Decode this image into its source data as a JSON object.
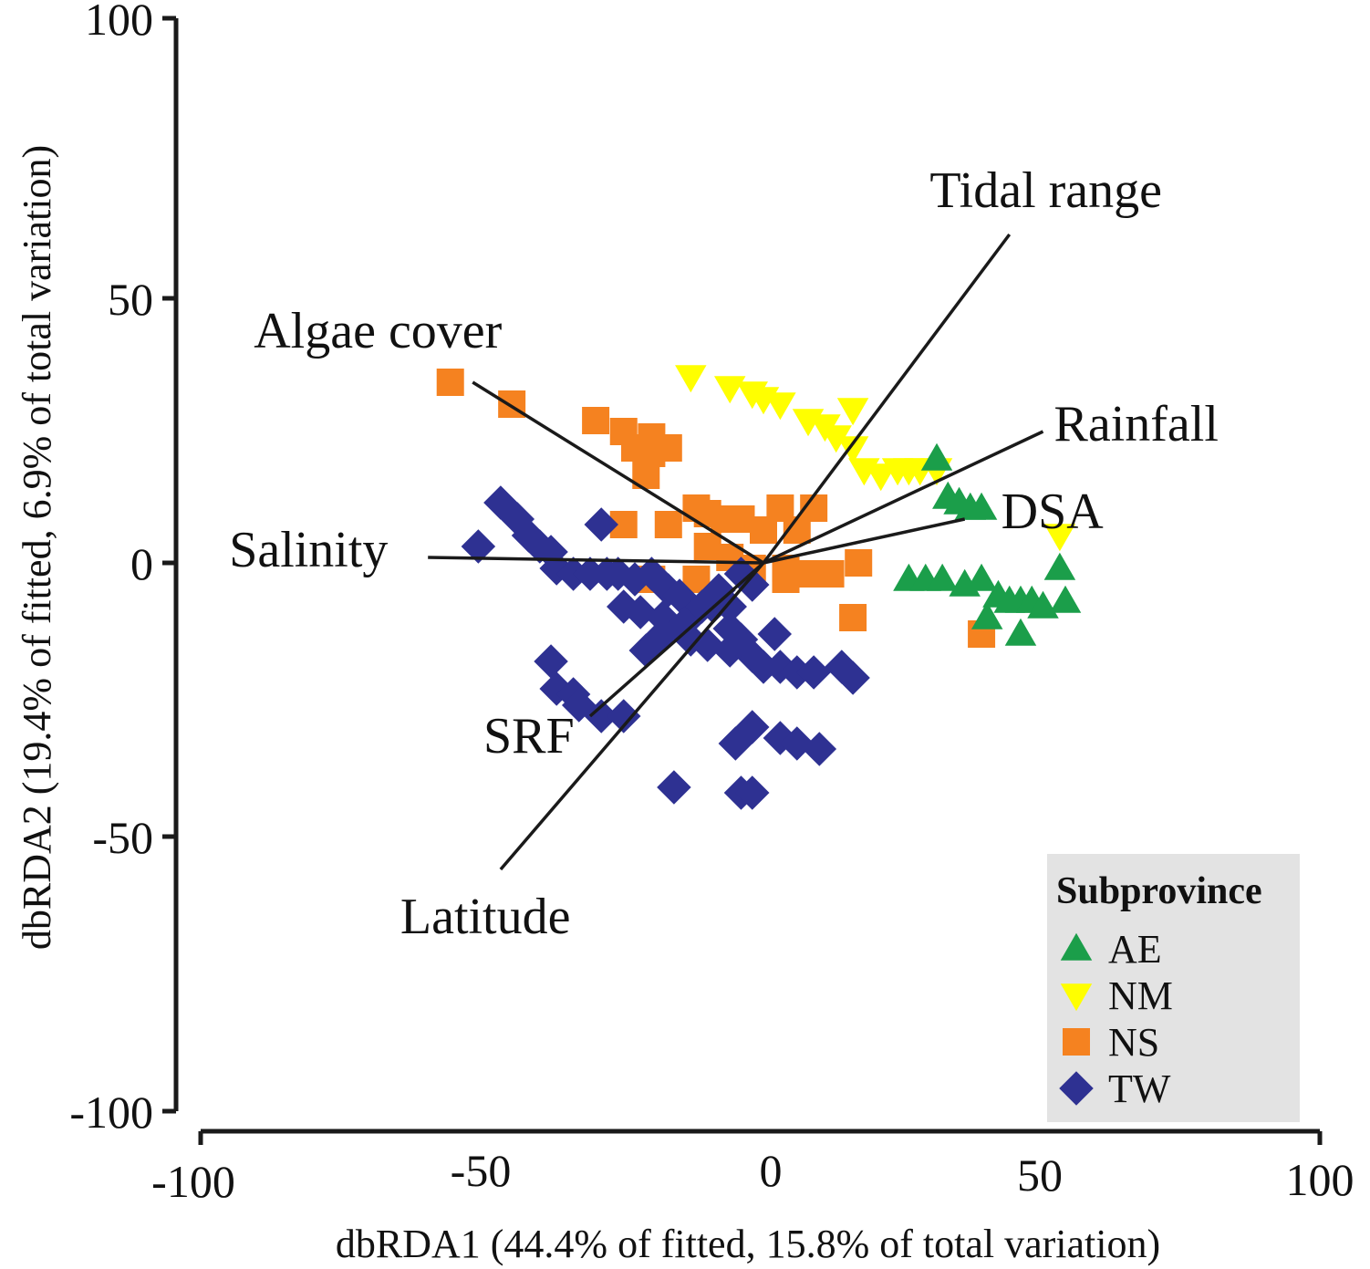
{
  "chart_data": {
    "type": "scatter",
    "title": "",
    "xlabel": "dbRDA1 (44.4% of fitted, 15.8% of total variation)",
    "ylabel": "dbRDA2 (19.4% of fitted, 6.9% of total variation)",
    "xlim": [
      -100,
      100
    ],
    "ylim": [
      -100,
      100
    ],
    "x_ticks": [
      "-100",
      "-50",
      "0",
      "50",
      "100"
    ],
    "y_ticks": [
      "100",
      "50",
      "0",
      "-50",
      "-100"
    ],
    "grid": false,
    "legend": {
      "title": "Subprovince",
      "position": "bottom-right",
      "entries": [
        {
          "name": "AE",
          "color": "#1b9e4a",
          "marker": "triangle-up"
        },
        {
          "name": "NM",
          "color": "#ffff00",
          "marker": "triangle-down"
        },
        {
          "name": "NS",
          "color": "#f58220",
          "marker": "square"
        },
        {
          "name": "TW",
          "color": "#2e3192",
          "marker": "diamond"
        }
      ]
    },
    "vectors": [
      {
        "name": "Tidal range",
        "x": 44,
        "y": 60
      },
      {
        "name": "Rainfall",
        "x": 50,
        "y": 24
      },
      {
        "name": "DSA",
        "x": 36,
        "y": 8
      },
      {
        "name": "Algae cover",
        "x": -52,
        "y": 33
      },
      {
        "name": "Salinity",
        "x": -60,
        "y": 1
      },
      {
        "name": "SRF",
        "x": -31,
        "y": -28
      },
      {
        "name": "Latitude",
        "x": -47,
        "y": -56
      }
    ],
    "series": [
      {
        "name": "AE",
        "points": [
          [
            31,
            19
          ],
          [
            33,
            12
          ],
          [
            35,
            11
          ],
          [
            37,
            10
          ],
          [
            39,
            10
          ],
          [
            26,
            -3
          ],
          [
            29,
            -3
          ],
          [
            32,
            -3
          ],
          [
            36,
            -4
          ],
          [
            39,
            -3
          ],
          [
            42,
            -6
          ],
          [
            44,
            -7
          ],
          [
            46,
            -7
          ],
          [
            48,
            -7
          ],
          [
            50,
            -8
          ],
          [
            53,
            -1
          ],
          [
            54,
            -7
          ],
          [
            40,
            -10
          ],
          [
            46,
            -13
          ]
        ]
      },
      {
        "name": "NM",
        "points": [
          [
            -13,
            34
          ],
          [
            -6,
            32
          ],
          [
            -2,
            31
          ],
          [
            0,
            30
          ],
          [
            3,
            29
          ],
          [
            8,
            26
          ],
          [
            11,
            25
          ],
          [
            13,
            23
          ],
          [
            16,
            21
          ],
          [
            16,
            28
          ],
          [
            18,
            17
          ],
          [
            21,
            16
          ],
          [
            24,
            17
          ],
          [
            26,
            17
          ],
          [
            28,
            17
          ],
          [
            31,
            17
          ],
          [
            53,
            5
          ]
        ]
      },
      {
        "name": "NS",
        "points": [
          [
            -56,
            33
          ],
          [
            -45,
            29
          ],
          [
            -30,
            26
          ],
          [
            -25,
            24
          ],
          [
            -20,
            23
          ],
          [
            -23,
            21
          ],
          [
            -20,
            20
          ],
          [
            -21,
            16
          ],
          [
            -17,
            21
          ],
          [
            -12,
            10
          ],
          [
            -10,
            9
          ],
          [
            -7,
            8
          ],
          [
            -4,
            8
          ],
          [
            0,
            6
          ],
          [
            3,
            10
          ],
          [
            6,
            6
          ],
          [
            9,
            10
          ],
          [
            -25,
            7
          ],
          [
            -17,
            7
          ],
          [
            -10,
            3
          ],
          [
            -6,
            1
          ],
          [
            -2,
            -1
          ],
          [
            4,
            -1
          ],
          [
            8,
            -2
          ],
          [
            12,
            -2
          ],
          [
            17,
            0
          ],
          [
            16,
            -10
          ],
          [
            -20,
            -3
          ],
          [
            -12,
            -3
          ],
          [
            4,
            -3
          ],
          [
            39,
            -13
          ]
        ]
      },
      {
        "name": "TW",
        "points": [
          [
            -47,
            11
          ],
          [
            -44,
            8
          ],
          [
            -42,
            5
          ],
          [
            -40,
            3
          ],
          [
            -38,
            2
          ],
          [
            -51,
            3
          ],
          [
            -37,
            -1
          ],
          [
            -34,
            -2
          ],
          [
            -31,
            -2
          ],
          [
            -28,
            -2
          ],
          [
            -26,
            -2
          ],
          [
            -29,
            7
          ],
          [
            -23,
            -3
          ],
          [
            -20,
            -2
          ],
          [
            -17,
            -5
          ],
          [
            -15,
            -6
          ],
          [
            -25,
            -8
          ],
          [
            -22,
            -9
          ],
          [
            -18,
            -10
          ],
          [
            -14,
            -11
          ],
          [
            -11,
            -8
          ],
          [
            -8,
            -5
          ],
          [
            -6,
            -8
          ],
          [
            -4,
            -2
          ],
          [
            -2,
            -4
          ],
          [
            -21,
            -16
          ],
          [
            -18,
            -13
          ],
          [
            -13,
            -14
          ],
          [
            -10,
            -15
          ],
          [
            -6,
            -16
          ],
          [
            -2,
            -17
          ],
          [
            -9,
            -8
          ],
          [
            -6,
            -12
          ],
          [
            -4,
            -14
          ],
          [
            2,
            -13
          ],
          [
            0,
            -19
          ],
          [
            3,
            -19
          ],
          [
            6,
            -20
          ],
          [
            9,
            -20
          ],
          [
            14,
            -19
          ],
          [
            16,
            -21
          ],
          [
            -38,
            -18
          ],
          [
            -37,
            -23
          ],
          [
            -34,
            -24
          ],
          [
            -33,
            -26
          ],
          [
            -29,
            -28
          ],
          [
            -25,
            -28
          ],
          [
            -2,
            -30
          ],
          [
            3,
            -32
          ],
          [
            6,
            -33
          ],
          [
            10,
            -34
          ],
          [
            -5,
            -33
          ],
          [
            -16,
            -41
          ],
          [
            -4,
            -42
          ],
          [
            -2,
            -42
          ]
        ]
      }
    ]
  }
}
